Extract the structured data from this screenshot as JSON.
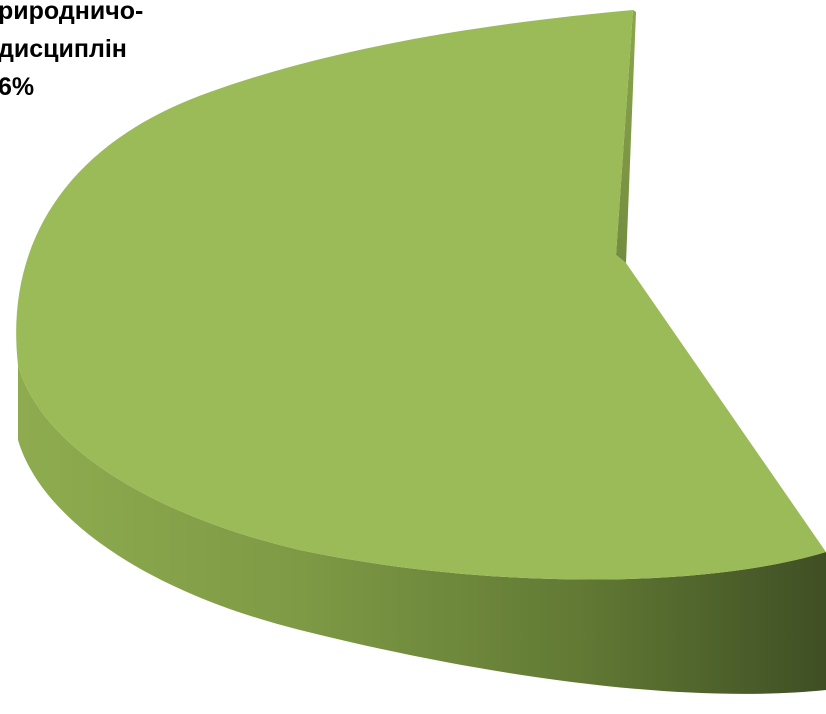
{
  "chart_data": {
    "type": "pie",
    "title": "",
    "slices": [
      {
        "label_lines": [
          "риродничо-",
          "дисциплін",
          "6%"
        ],
        "color": "#9bbb59",
        "color_top": "#9bbb59",
        "color_side_light": "#8eac4f",
        "color_side_dark": "#3f4f24"
      }
    ],
    "legend": "none",
    "style": "3d-exploded"
  }
}
